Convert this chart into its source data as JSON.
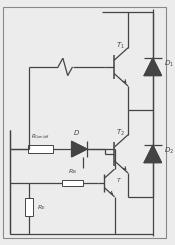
{
  "bg_color": "#ececec",
  "line_color": "#444444",
  "fig_width": 1.75,
  "fig_height": 2.45,
  "dpi": 100
}
